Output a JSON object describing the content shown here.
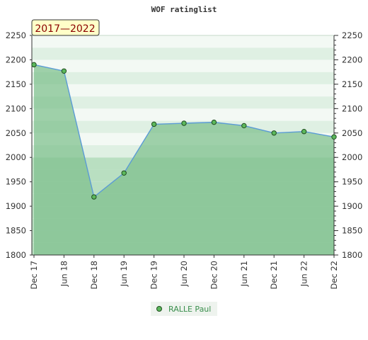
{
  "chart_data": {
    "type": "area",
    "title": "WOF ratinglist",
    "period_badge": "2017—2022",
    "categories": [
      "Dec 17",
      "Jun 18",
      "Dec 18",
      "Jun 19",
      "Dec 19",
      "Jun 20",
      "Dec 20",
      "Jun 21",
      "Dec 21",
      "Jun 22",
      "Dec 22"
    ],
    "series": [
      {
        "name": "RALLE Paul",
        "values": [
          2190,
          2177,
          1919,
          1968,
          2068,
          2070,
          2072,
          2065,
          2050,
          2053,
          2042
        ]
      }
    ],
    "ylim": [
      1800,
      2250
    ],
    "yticks": [
      1800,
      1850,
      1900,
      1950,
      2000,
      2050,
      2100,
      2150,
      2200,
      2250
    ],
    "grid": "horizontal bands",
    "legend": "bottom",
    "colors": {
      "line": "#5b9bd5",
      "fill": "#7dbf8c",
      "marker": "#5cb85c",
      "marker_edge": "#1f4d1f",
      "band_dark": "#b9dfc1",
      "band_light": "#dff0e3",
      "band_white": "#f3f9f4",
      "badge_bg": "#ffffc8"
    }
  }
}
